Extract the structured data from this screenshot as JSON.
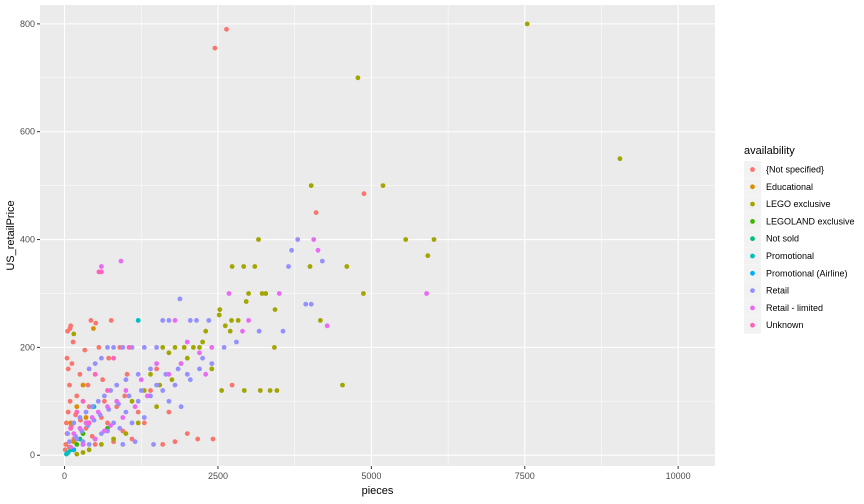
{
  "chart_data": {
    "type": "scatter",
    "title": "",
    "xlabel": "pieces",
    "ylabel": "US_retailPrice",
    "xlim": [
      -400,
      10600
    ],
    "ylim": [
      -20,
      835
    ],
    "x_ticks": [
      0,
      2500,
      5000,
      7500,
      10000
    ],
    "y_ticks": [
      0,
      200,
      400,
      600,
      800
    ],
    "grid": true,
    "legend": {
      "title": "availability",
      "placement": "right"
    },
    "series": [
      {
        "name": "{Not specified}",
        "color": "#F8766D",
        "points": [
          [
            2450,
            755
          ],
          [
            2640,
            790
          ],
          [
            4880,
            485
          ],
          [
            4100,
            450
          ],
          [
            430,
            250
          ],
          [
            510,
            245
          ],
          [
            760,
            250
          ],
          [
            100,
            240
          ],
          [
            90,
            235
          ],
          [
            50,
            230
          ],
          [
            140,
            210
          ],
          [
            330,
            195
          ],
          [
            560,
            200
          ],
          [
            900,
            200
          ],
          [
            120,
            170
          ],
          [
            250,
            150
          ],
          [
            60,
            160
          ],
          [
            720,
            180
          ],
          [
            1020,
            150
          ],
          [
            1400,
            120
          ],
          [
            1700,
            80
          ],
          [
            2730,
            130
          ],
          [
            2000,
            40
          ],
          [
            2170,
            30
          ],
          [
            2420,
            30
          ],
          [
            80,
            130
          ],
          [
            200,
            110
          ],
          [
            400,
            90
          ],
          [
            600,
            70
          ],
          [
            700,
            60
          ],
          [
            300,
            40
          ],
          [
            150,
            30
          ],
          [
            500,
            20
          ],
          [
            800,
            25
          ],
          [
            1100,
            30
          ],
          [
            1300,
            60
          ],
          [
            60,
            80
          ],
          [
            30,
            60
          ],
          [
            40,
            40
          ],
          [
            20,
            20
          ],
          [
            10,
            10
          ],
          [
            90,
            100
          ],
          [
            110,
            55
          ],
          [
            180,
            75
          ],
          [
            260,
            65
          ],
          [
            350,
            50
          ],
          [
            450,
            35
          ],
          [
            650,
            100
          ],
          [
            850,
            90
          ],
          [
            950,
            45
          ],
          [
            1200,
            80
          ],
          [
            1600,
            20
          ],
          [
            1800,
            25
          ],
          [
            380,
            130
          ],
          [
            620,
            140
          ],
          [
            1500,
            160
          ],
          [
            980,
            110
          ],
          [
            40,
            180
          ]
        ]
      },
      {
        "name": "Educational",
        "color": "#D89000",
        "points": [
          [
            470,
            235
          ],
          [
            300,
            130
          ],
          [
            200,
            90
          ],
          [
            100,
            60
          ],
          [
            50,
            40
          ],
          [
            350,
            70
          ],
          [
            150,
            25
          ],
          [
            80,
            15
          ]
        ]
      },
      {
        "name": "LEGO exclusive",
        "color": "#A3A500",
        "points": [
          [
            7540,
            800
          ],
          [
            4780,
            700
          ],
          [
            9050,
            550
          ],
          [
            4020,
            500
          ],
          [
            5190,
            500
          ],
          [
            3160,
            400
          ],
          [
            5560,
            400
          ],
          [
            6020,
            400
          ],
          [
            5920,
            370
          ],
          [
            4000,
            350
          ],
          [
            4600,
            350
          ],
          [
            2730,
            350
          ],
          [
            2920,
            350
          ],
          [
            3100,
            350
          ],
          [
            4870,
            300
          ],
          [
            3220,
            300
          ],
          [
            3280,
            300
          ],
          [
            3000,
            300
          ],
          [
            2960,
            285
          ],
          [
            3430,
            270
          ],
          [
            4170,
            250
          ],
          [
            2720,
            250
          ],
          [
            2830,
            250
          ],
          [
            2530,
            270
          ],
          [
            2520,
            260
          ],
          [
            2620,
            240
          ],
          [
            2300,
            230
          ],
          [
            2700,
            230
          ],
          [
            4530,
            130
          ],
          [
            3420,
            200
          ],
          [
            3350,
            120
          ],
          [
            3460,
            120
          ],
          [
            2930,
            120
          ],
          [
            3190,
            120
          ],
          [
            1600,
            200
          ],
          [
            1800,
            200
          ],
          [
            1950,
            200
          ],
          [
            2100,
            200
          ],
          [
            2200,
            200
          ],
          [
            1700,
            190
          ],
          [
            1900,
            170
          ],
          [
            2000,
            180
          ],
          [
            2400,
            160
          ],
          [
            1400,
            150
          ],
          [
            1300,
            120
          ],
          [
            1500,
            90
          ],
          [
            1200,
            60
          ],
          [
            1000,
            40
          ],
          [
            800,
            30
          ],
          [
            600,
            20
          ],
          [
            400,
            10
          ],
          [
            300,
            5
          ],
          [
            200,
            2
          ],
          [
            1550,
            130
          ],
          [
            1750,
            140
          ],
          [
            2250,
            210
          ],
          [
            150,
            225
          ],
          [
            2560,
            120
          ],
          [
            1100,
            100
          ]
        ]
      },
      {
        "name": "LEGOLAND exclusive",
        "color": "#39B600",
        "points": [
          [
            300,
            40
          ],
          [
            500,
            30
          ],
          [
            200,
            20
          ],
          [
            700,
            50
          ]
        ]
      },
      {
        "name": "Not sold",
        "color": "#00BF7D",
        "points": [
          [
            100,
            10
          ],
          [
            400,
            60
          ],
          [
            250,
            30
          ]
        ]
      },
      {
        "name": "Promotional",
        "color": "#00BFC4",
        "points": [
          [
            1200,
            250
          ],
          [
            480,
            90
          ],
          [
            380,
            60
          ],
          [
            150,
            10
          ],
          [
            60,
            5
          ],
          [
            30,
            2
          ]
        ]
      },
      {
        "name": "Promotional (Airline)",
        "color": "#00B0F6",
        "points": [
          [
            300,
            20
          ],
          [
            150,
            10
          ]
        ]
      },
      {
        "name": "Retail",
        "color": "#9590FF",
        "points": [
          [
            3800,
            400
          ],
          [
            3700,
            380
          ],
          [
            4200,
            360
          ],
          [
            3650,
            350
          ],
          [
            3930,
            280
          ],
          [
            4020,
            280
          ],
          [
            3560,
            230
          ],
          [
            3170,
            230
          ],
          [
            1880,
            290
          ],
          [
            1600,
            250
          ],
          [
            1700,
            250
          ],
          [
            2050,
            250
          ],
          [
            2150,
            250
          ],
          [
            2350,
            250
          ],
          [
            1500,
            200
          ],
          [
            1300,
            200
          ],
          [
            1100,
            200
          ],
          [
            950,
            200
          ],
          [
            800,
            200
          ],
          [
            700,
            200
          ],
          [
            600,
            180
          ],
          [
            500,
            170
          ],
          [
            400,
            160
          ],
          [
            1400,
            160
          ],
          [
            1200,
            150
          ],
          [
            1000,
            140
          ],
          [
            850,
            130
          ],
          [
            750,
            120
          ],
          [
            650,
            110
          ],
          [
            550,
            100
          ],
          [
            450,
            90
          ],
          [
            350,
            80
          ],
          [
            250,
            70
          ],
          [
            150,
            60
          ],
          [
            100,
            50
          ],
          [
            50,
            40
          ],
          [
            200,
            30
          ],
          [
            300,
            25
          ],
          [
            400,
            20
          ],
          [
            600,
            40
          ],
          [
            800,
            60
          ],
          [
            1000,
            80
          ],
          [
            1200,
            100
          ],
          [
            1400,
            110
          ],
          [
            1600,
            120
          ],
          [
            1800,
            130
          ],
          [
            2000,
            150
          ],
          [
            2200,
            160
          ],
          [
            2400,
            170
          ],
          [
            1700,
            100
          ],
          [
            1900,
            90
          ],
          [
            1300,
            70
          ],
          [
            1100,
            60
          ],
          [
            900,
            50
          ],
          [
            700,
            45
          ],
          [
            1500,
            130
          ],
          [
            1250,
            120
          ],
          [
            1050,
            110
          ],
          [
            880,
            95
          ],
          [
            720,
            85
          ],
          [
            580,
            75
          ],
          [
            480,
            65
          ],
          [
            380,
            55
          ],
          [
            280,
            45
          ],
          [
            180,
            35
          ],
          [
            80,
            25
          ],
          [
            2600,
            200
          ],
          [
            2800,
            210
          ],
          [
            1450,
            20
          ],
          [
            1150,
            25
          ],
          [
            950,
            20
          ],
          [
            1650,
            150
          ],
          [
            1850,
            160
          ],
          [
            2050,
            140
          ],
          [
            2250,
            180
          ]
        ]
      },
      {
        "name": "Retail - limited",
        "color": "#E76BF3",
        "points": [
          [
            4130,
            380
          ],
          [
            4060,
            400
          ],
          [
            5900,
            300
          ],
          [
            4280,
            240
          ],
          [
            920,
            360
          ],
          [
            2680,
            300
          ],
          [
            2400,
            200
          ],
          [
            2200,
            190
          ],
          [
            1800,
            250
          ],
          [
            2000,
            210
          ],
          [
            1500,
            170
          ],
          [
            1250,
            140
          ],
          [
            1000,
            120
          ],
          [
            850,
            100
          ],
          [
            700,
            90
          ],
          [
            550,
            80
          ],
          [
            450,
            70
          ],
          [
            350,
            60
          ],
          [
            250,
            50
          ],
          [
            150,
            40
          ],
          [
            600,
            350
          ],
          [
            3500,
            300
          ],
          [
            3000,
            250
          ],
          [
            2900,
            230
          ],
          [
            1700,
            150
          ],
          [
            1350,
            110
          ],
          [
            1150,
            90
          ],
          [
            950,
            70
          ],
          [
            750,
            55
          ],
          [
            650,
            45
          ],
          [
            500,
            30
          ],
          [
            300,
            20
          ],
          [
            100,
            15
          ],
          [
            1900,
            170
          ],
          [
            2300,
            150
          ]
        ]
      },
      {
        "name": "Unknown",
        "color": "#FF62BC",
        "points": [
          [
            560,
            340
          ],
          [
            600,
            340
          ],
          [
            1050,
            200
          ],
          [
            800,
            180
          ],
          [
            500,
            150
          ],
          [
            300,
            100
          ],
          [
            200,
            80
          ],
          [
            100,
            50
          ],
          [
            700,
            120
          ],
          [
            400,
            60
          ]
        ]
      }
    ]
  }
}
